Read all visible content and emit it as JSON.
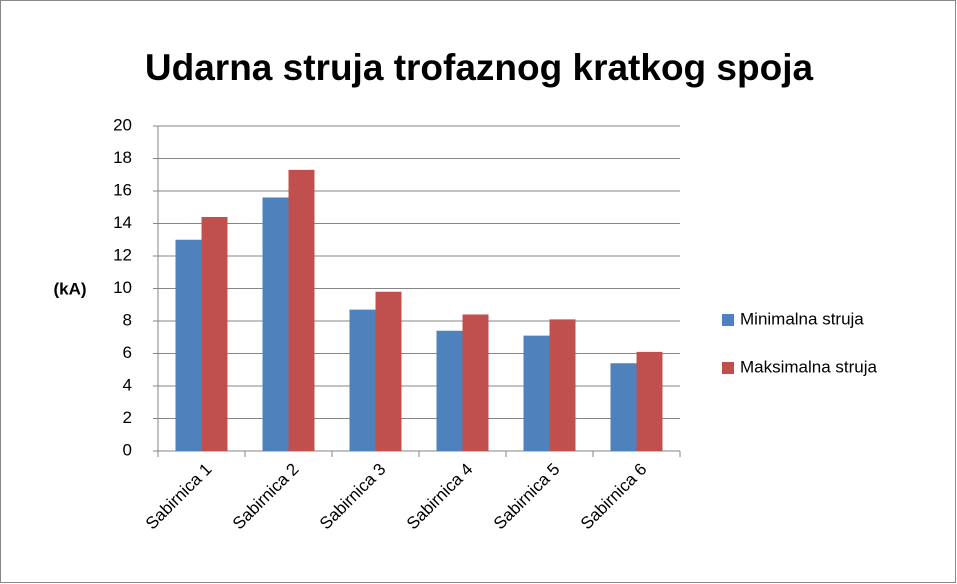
{
  "chart_data": {
    "type": "bar",
    "title": "Udarna struja trofaznog kratkog spoja",
    "y_label": "(kA)",
    "categories": [
      "Sabirnica 1",
      "Sabirnica 2",
      "Sabirnica 3",
      "Sabirnica 4",
      "Sabirnica 5",
      "Sabirnica 6"
    ],
    "series": [
      {
        "name": "Minimalna struja",
        "color": "#4f81bd",
        "values": [
          13.0,
          15.6,
          8.7,
          7.4,
          7.1,
          5.4
        ]
      },
      {
        "name": "Maksimalna struja",
        "color": "#c0504d",
        "values": [
          14.4,
          17.3,
          9.8,
          8.4,
          8.1,
          6.1
        ]
      }
    ],
    "ylim": [
      0,
      20
    ],
    "yticks": [
      0,
      2,
      4,
      6,
      8,
      10,
      12,
      14,
      16,
      18,
      20
    ],
    "grid": true,
    "legend": "right"
  }
}
